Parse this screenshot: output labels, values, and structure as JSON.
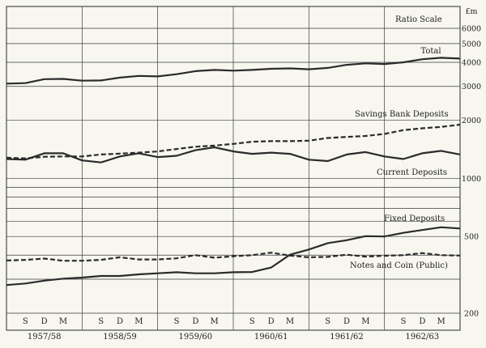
{
  "chart_data": {
    "type": "line",
    "title": "Ratio Scale",
    "unit": "£m",
    "scale": "log",
    "ylim": [
      200,
      6500
    ],
    "y_ticks": [
      200,
      500,
      1000,
      2000,
      3000,
      4000,
      5000,
      6000
    ],
    "grid": true,
    "quarter_labels": [
      "S",
      "D",
      "M"
    ],
    "years": [
      "1957/58",
      "1958/59",
      "1959/60",
      "1960/61",
      "1961/62",
      "1962/63"
    ],
    "series": [
      {
        "name": "Total",
        "style": "solid",
        "values": [
          3100,
          3120,
          3270,
          3280,
          3210,
          3220,
          3330,
          3400,
          3380,
          3470,
          3600,
          3650,
          3620,
          3650,
          3700,
          3720,
          3680,
          3740,
          3880,
          3950,
          3920,
          4000,
          4150,
          4220,
          4180
        ]
      },
      {
        "name": "Savings Bank Deposits",
        "style": "dashed",
        "values": [
          1280,
          1270,
          1295,
          1300,
          1300,
          1330,
          1345,
          1360,
          1380,
          1420,
          1460,
          1480,
          1510,
          1550,
          1560,
          1560,
          1570,
          1620,
          1640,
          1660,
          1700,
          1780,
          1820,
          1850,
          1900
        ]
      },
      {
        "name": "Current Deposits",
        "style": "solid",
        "values": [
          1260,
          1250,
          1350,
          1350,
          1240,
          1210,
          1300,
          1350,
          1290,
          1310,
          1400,
          1450,
          1380,
          1340,
          1360,
          1340,
          1250,
          1230,
          1330,
          1370,
          1300,
          1260,
          1350,
          1390,
          1330
        ]
      },
      {
        "name": "Fixed Deposits",
        "style": "solid",
        "values": [
          280,
          285,
          295,
          302,
          306,
          312,
          312,
          318,
          322,
          326,
          322,
          322,
          326,
          327,
          345,
          402,
          428,
          462,
          478,
          502,
          500,
          522,
          540,
          558,
          550
        ]
      },
      {
        "name": "Notes and Coin (Public)",
        "style": "dashed",
        "values": [
          375,
          378,
          384,
          374,
          374,
          378,
          390,
          380,
          380,
          385,
          400,
          388,
          395,
          400,
          412,
          398,
          390,
          392,
          402,
          393,
          397,
          400,
          410,
          400,
          398
        ]
      }
    ]
  }
}
